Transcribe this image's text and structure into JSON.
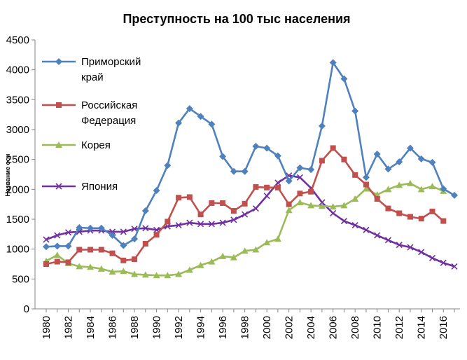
{
  "chart_data": {
    "type": "line",
    "title": "Преступность на 100 тыс населения",
    "xlabel": "",
    "ylabel": "Название оси",
    "ylim": [
      0,
      4500
    ],
    "yticks": [
      0,
      500,
      1000,
      1500,
      2000,
      2500,
      3000,
      3500,
      4000,
      4500
    ],
    "xticks": [
      1980,
      1982,
      1984,
      1986,
      1988,
      1990,
      1992,
      1994,
      1996,
      1998,
      2000,
      2002,
      2004,
      2006,
      2008,
      2010,
      2012,
      2014,
      2016
    ],
    "x": [
      1980,
      1981,
      1982,
      1983,
      1984,
      1985,
      1986,
      1987,
      1988,
      1989,
      1990,
      1991,
      1992,
      1993,
      1994,
      1995,
      1996,
      1997,
      1998,
      1999,
      2000,
      2001,
      2002,
      2003,
      2004,
      2005,
      2006,
      2007,
      2008,
      2009,
      2010,
      2011,
      2012,
      2013,
      2014,
      2015,
      2016,
      2017
    ],
    "grid": false,
    "series": [
      {
        "name": "Приморский край",
        "color": "#4f81bd",
        "marker": "diamond",
        "values": [
          1040,
          1050,
          1050,
          1360,
          1350,
          1350,
          1230,
          1060,
          1170,
          1640,
          1980,
          2400,
          3110,
          3350,
          3220,
          3090,
          2550,
          2300,
          2300,
          2720,
          2690,
          2560,
          2140,
          2360,
          2330,
          3060,
          4120,
          3850,
          3310,
          2200,
          2590,
          2340,
          2460,
          2690,
          2510,
          2450,
          2010,
          1900
        ]
      },
      {
        "name": "Российская Федерация",
        "color": "#c0504d",
        "marker": "square",
        "values": [
          750,
          790,
          780,
          990,
          990,
          990,
          930,
          810,
          830,
          1090,
          1240,
          1460,
          1860,
          1870,
          1580,
          1770,
          1770,
          1640,
          1760,
          2040,
          2030,
          2030,
          1750,
          1930,
          1960,
          2480,
          2690,
          2500,
          2240,
          2080,
          1840,
          1680,
          1600,
          1540,
          1510,
          1630,
          1470,
          null
        ]
      },
      {
        "name": "Корея",
        "color": "#9bbb59",
        "marker": "triangle",
        "values": [
          800,
          900,
          760,
          710,
          700,
          670,
          620,
          630,
          580,
          570,
          560,
          560,
          580,
          650,
          730,
          790,
          880,
          860,
          970,
          990,
          1110,
          1170,
          1650,
          1780,
          1730,
          1720,
          1710,
          1730,
          1840,
          2010,
          1910,
          2000,
          2070,
          2100,
          2000,
          2050,
          1970,
          null
        ]
      },
      {
        "name": "Япония",
        "color": "#7030a0",
        "marker": "x",
        "values": [
          1160,
          1230,
          1280,
          1290,
          1310,
          1310,
          1290,
          1290,
          1340,
          1350,
          1320,
          1380,
          1400,
          1440,
          1420,
          1420,
          1440,
          1490,
          1580,
          1680,
          1890,
          2110,
          2230,
          2200,
          2020,
          1780,
          1600,
          1470,
          1400,
          1320,
          1230,
          1150,
          1070,
          1030,
          950,
          850,
          770,
          710
        ]
      }
    ]
  }
}
